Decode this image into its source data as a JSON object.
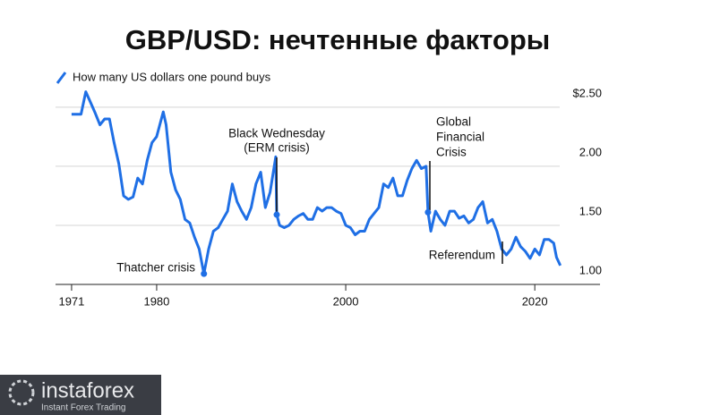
{
  "chart_data": {
    "type": "line",
    "title": "GBP/USD: нечтенные факторы",
    "x": [
      1971.0,
      1972.0,
      1972.5,
      1973.0,
      1973.5,
      1974.0,
      1974.5,
      1975.0,
      1975.5,
      1976.0,
      1976.5,
      1977.0,
      1977.5,
      1978.0,
      1978.5,
      1979.0,
      1979.5,
      1980.0,
      1980.7,
      1981.0,
      1981.5,
      1982.0,
      1982.5,
      1983.0,
      1983.5,
      1984.0,
      1984.5,
      1985.0,
      1985.5,
      1986.0,
      1986.5,
      1987.0,
      1987.5,
      1988.0,
      1988.5,
      1989.0,
      1989.5,
      1990.0,
      1990.5,
      1991.0,
      1991.5,
      1992.0,
      1992.6,
      1992.7,
      1993.0,
      1993.5,
      1994.0,
      1994.5,
      1995.0,
      1995.5,
      1996.0,
      1996.5,
      1997.0,
      1997.5,
      1998.0,
      1998.5,
      1999.0,
      1999.5,
      2000.0,
      2000.5,
      2001.0,
      2001.5,
      2002.0,
      2002.5,
      2003.0,
      2003.5,
      2004.0,
      2004.5,
      2005.0,
      2005.5,
      2006.0,
      2006.5,
      2007.0,
      2007.5,
      2008.0,
      2008.5,
      2008.7,
      2009.0,
      2009.5,
      2010.0,
      2010.5,
      2011.0,
      2011.5,
      2012.0,
      2012.5,
      2013.0,
      2013.5,
      2014.0,
      2014.5,
      2015.0,
      2015.5,
      2016.0,
      2016.5,
      2017.0,
      2017.5,
      2018.0,
      2018.5,
      2019.0,
      2019.5,
      2020.0,
      2020.5,
      2021.0,
      2021.5,
      2022.0,
      2022.3,
      2022.7
    ],
    "series": [
      {
        "name": "How many US dollars one pound buys",
        "color": "#1f6fe5",
        "values": [
          2.44,
          2.44,
          2.63,
          2.54,
          2.45,
          2.35,
          2.4,
          2.4,
          2.2,
          2.02,
          1.75,
          1.72,
          1.74,
          1.9,
          1.85,
          2.05,
          2.2,
          2.25,
          2.46,
          2.35,
          1.95,
          1.8,
          1.72,
          1.55,
          1.52,
          1.4,
          1.3,
          1.09,
          1.3,
          1.45,
          1.48,
          1.55,
          1.62,
          1.85,
          1.7,
          1.62,
          1.55,
          1.65,
          1.85,
          1.95,
          1.65,
          1.78,
          2.08,
          1.59,
          1.5,
          1.48,
          1.5,
          1.55,
          1.58,
          1.6,
          1.55,
          1.55,
          1.65,
          1.62,
          1.65,
          1.65,
          1.62,
          1.6,
          1.5,
          1.48,
          1.42,
          1.45,
          1.45,
          1.55,
          1.6,
          1.65,
          1.85,
          1.82,
          1.9,
          1.75,
          1.75,
          1.88,
          1.98,
          2.05,
          1.98,
          2.0,
          1.61,
          1.45,
          1.62,
          1.55,
          1.5,
          1.62,
          1.62,
          1.56,
          1.58,
          1.52,
          1.55,
          1.65,
          1.7,
          1.52,
          1.55,
          1.45,
          1.3,
          1.25,
          1.3,
          1.4,
          1.32,
          1.28,
          1.22,
          1.3,
          1.25,
          1.38,
          1.38,
          1.35,
          1.23,
          1.16
        ]
      }
    ],
    "legend_position": "top-left",
    "xlim": [
      1969.3,
      2026.9
    ],
    "xticks": [
      1971,
      1980,
      2000,
      2020
    ],
    "ylim": [
      1.0,
      2.65
    ],
    "yticks": [
      {
        "value": 1.0,
        "label": "1.00"
      },
      {
        "value": 1.5,
        "label": "1.50"
      },
      {
        "value": 2.0,
        "label": "2.00"
      },
      {
        "value": 2.5,
        "label": "$2.50"
      }
    ],
    "grid": true,
    "annotations": [
      {
        "lines": [
          "Thatcher crisis"
        ]
      },
      {
        "lines": [
          "Black Wednesday",
          "(ERM crisis)"
        ]
      },
      {
        "lines": [
          "Global",
          "Financial",
          "Crisis"
        ]
      },
      {
        "lines": [
          "Referendum"
        ]
      }
    ]
  },
  "watermark": {
    "brand": "instaforex",
    "tagline": "Instant Forex Trading"
  }
}
